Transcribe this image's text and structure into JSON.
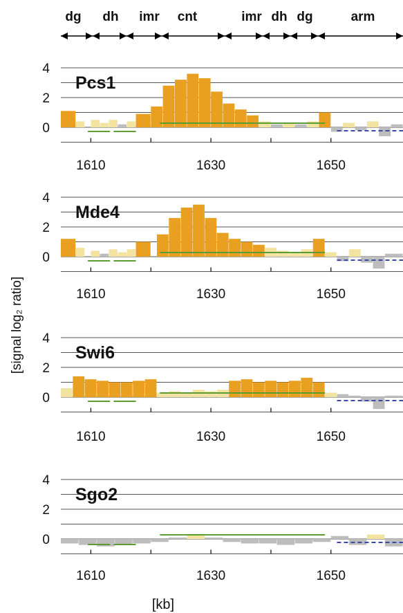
{
  "chart_data": {
    "type": "bar",
    "ylabel": "[signal log₂ ratio]",
    "xlabel": "[kb]",
    "regions": [
      "dg",
      "dh",
      "imr",
      "cnt",
      "imr",
      "dh",
      "dg",
      "arm"
    ],
    "x_ticks": [
      "1610",
      "1630",
      "1650"
    ],
    "y_ticks": [
      "0",
      "2",
      "4"
    ],
    "xlim": [
      1605,
      1662
    ],
    "ylim": [
      -1,
      4.5
    ],
    "panels": [
      {
        "name": "Pcs1",
        "segments": [
          {
            "x": [
              1605,
              1607.5
            ],
            "value": 1.1
          },
          {
            "x": [
              1607.5,
              1609
            ],
            "value": 0.4
          },
          {
            "x": [
              1610,
              1611.5
            ],
            "value": 0.5
          },
          {
            "x": [
              1611.5,
              1613
            ],
            "value": 0.3
          },
          {
            "x": [
              1613,
              1614.5
            ],
            "value": 0.5
          },
          {
            "x": [
              1614.5,
              1616
            ],
            "value": 0.2
          },
          {
            "x": [
              1616,
              1617.5
            ],
            "value": 0.4
          },
          {
            "x": [
              1617.5,
              1620
            ],
            "value": 0.9
          },
          {
            "x": [
              1620,
              1622
            ],
            "value": 1.4
          },
          {
            "x": [
              1622,
              1624
            ],
            "value": 2.8
          },
          {
            "x": [
              1624,
              1626
            ],
            "value": 3.2
          },
          {
            "x": [
              1626,
              1628
            ],
            "value": 3.6
          },
          {
            "x": [
              1628,
              1630
            ],
            "value": 3.3
          },
          {
            "x": [
              1630,
              1632
            ],
            "value": 2.4
          },
          {
            "x": [
              1632,
              1634
            ],
            "value": 1.6
          },
          {
            "x": [
              1634,
              1636
            ],
            "value": 1.2
          },
          {
            "x": [
              1636,
              1638
            ],
            "value": 0.8
          },
          {
            "x": [
              1638,
              1640
            ],
            "value": 0.4
          },
          {
            "x": [
              1640,
              1642
            ],
            "value": 0.2
          },
          {
            "x": [
              1642,
              1644
            ],
            "value": 0.3
          },
          {
            "x": [
              1644,
              1646
            ],
            "value": 0.2
          },
          {
            "x": [
              1646,
              1648
            ],
            "value": 0.4
          },
          {
            "x": [
              1648,
              1650
            ],
            "value": 1.0
          },
          {
            "x": [
              1650,
              1652
            ],
            "value": -0.3
          },
          {
            "x": [
              1652,
              1654
            ],
            "value": 0.3
          },
          {
            "x": [
              1654,
              1656
            ],
            "value": -0.2
          },
          {
            "x": [
              1656,
              1658
            ],
            "value": 0.4
          },
          {
            "x": [
              1658,
              1660
            ],
            "value": -0.6
          },
          {
            "x": [
              1660,
              1662
            ],
            "value": 0.2
          }
        ]
      },
      {
        "name": "Mde4",
        "segments": [
          {
            "x": [
              1605,
              1607.5
            ],
            "value": 1.2
          },
          {
            "x": [
              1607.5,
              1609
            ],
            "value": 0.6
          },
          {
            "x": [
              1610,
              1611.5
            ],
            "value": 0.4
          },
          {
            "x": [
              1611.5,
              1613
            ],
            "value": 0.2
          },
          {
            "x": [
              1613,
              1614.5
            ],
            "value": 0.5
          },
          {
            "x": [
              1614.5,
              1616
            ],
            "value": 0.3
          },
          {
            "x": [
              1616,
              1617.5
            ],
            "value": 0.5
          },
          {
            "x": [
              1617.5,
              1620
            ],
            "value": 1.0
          },
          {
            "x": [
              1621,
              1623
            ],
            "value": 1.5
          },
          {
            "x": [
              1623,
              1625
            ],
            "value": 2.6
          },
          {
            "x": [
              1625,
              1627
            ],
            "value": 3.3
          },
          {
            "x": [
              1627,
              1629
            ],
            "value": 3.5
          },
          {
            "x": [
              1629,
              1631
            ],
            "value": 2.6
          },
          {
            "x": [
              1631,
              1633
            ],
            "value": 1.6
          },
          {
            "x": [
              1633,
              1635
            ],
            "value": 1.2
          },
          {
            "x": [
              1635,
              1637
            ],
            "value": 1.0
          },
          {
            "x": [
              1637,
              1639
            ],
            "value": 0.8
          },
          {
            "x": [
              1639,
              1641
            ],
            "value": 0.6
          },
          {
            "x": [
              1641,
              1643
            ],
            "value": 0.4
          },
          {
            "x": [
              1643,
              1645
            ],
            "value": 0.3
          },
          {
            "x": [
              1645,
              1647
            ],
            "value": 0.5
          },
          {
            "x": [
              1647,
              1649
            ],
            "value": 1.2
          },
          {
            "x": [
              1649,
              1651
            ],
            "value": 0.3
          },
          {
            "x": [
              1651,
              1653
            ],
            "value": -0.3
          },
          {
            "x": [
              1653,
              1655
            ],
            "value": 0.5
          },
          {
            "x": [
              1655,
              1657
            ],
            "value": -0.4
          },
          {
            "x": [
              1657,
              1659
            ],
            "value": -0.8
          },
          {
            "x": [
              1659,
              1662
            ],
            "value": 0.2
          }
        ]
      },
      {
        "name": "Swi6",
        "segments": [
          {
            "x": [
              1605,
              1607
            ],
            "value": 0.6
          },
          {
            "x": [
              1607,
              1609
            ],
            "value": 1.4
          },
          {
            "x": [
              1609,
              1611
            ],
            "value": 1.2
          },
          {
            "x": [
              1611,
              1613
            ],
            "value": 1.1
          },
          {
            "x": [
              1613,
              1615
            ],
            "value": 1.0
          },
          {
            "x": [
              1615,
              1617
            ],
            "value": 1.0
          },
          {
            "x": [
              1617,
              1619
            ],
            "value": 1.1
          },
          {
            "x": [
              1619,
              1621
            ],
            "value": 1.2
          },
          {
            "x": [
              1621,
              1623
            ],
            "value": 0.3
          },
          {
            "x": [
              1623,
              1625
            ],
            "value": 0.4
          },
          {
            "x": [
              1625,
              1627
            ],
            "value": 0.3
          },
          {
            "x": [
              1627,
              1629
            ],
            "value": 0.5
          },
          {
            "x": [
              1629,
              1631
            ],
            "value": 0.4
          },
          {
            "x": [
              1631,
              1633
            ],
            "value": 0.5
          },
          {
            "x": [
              1633,
              1635
            ],
            "value": 1.1
          },
          {
            "x": [
              1635,
              1637
            ],
            "value": 1.2
          },
          {
            "x": [
              1637,
              1639
            ],
            "value": 1.0
          },
          {
            "x": [
              1639,
              1641
            ],
            "value": 1.1
          },
          {
            "x": [
              1641,
              1643
            ],
            "value": 1.0
          },
          {
            "x": [
              1643,
              1645
            ],
            "value": 1.1
          },
          {
            "x": [
              1645,
              1647
            ],
            "value": 1.3
          },
          {
            "x": [
              1647,
              1649
            ],
            "value": 1.0
          },
          {
            "x": [
              1649,
              1651
            ],
            "value": 0.3
          },
          {
            "x": [
              1651,
              1653
            ],
            "value": 0.2
          },
          {
            "x": [
              1653,
              1655
            ],
            "value": 0.1
          },
          {
            "x": [
              1655,
              1657
            ],
            "value": -0.3
          },
          {
            "x": [
              1657,
              1659
            ],
            "value": -0.8
          },
          {
            "x": [
              1659,
              1662
            ],
            "value": 0.1
          }
        ]
      },
      {
        "name": "Sgo2",
        "segments": [
          {
            "x": [
              1605,
              1608
            ],
            "value": -0.3
          },
          {
            "x": [
              1608,
              1611
            ],
            "value": -0.4
          },
          {
            "x": [
              1611,
              1614
            ],
            "value": -0.5
          },
          {
            "x": [
              1614,
              1617
            ],
            "value": -0.4
          },
          {
            "x": [
              1617,
              1620
            ],
            "value": -0.3
          },
          {
            "x": [
              1620,
              1623
            ],
            "value": -0.2
          },
          {
            "x": [
              1623,
              1626
            ],
            "value": 0.1
          },
          {
            "x": [
              1626,
              1629
            ],
            "value": 0.3
          },
          {
            "x": [
              1629,
              1632
            ],
            "value": 0.1
          },
          {
            "x": [
              1632,
              1635
            ],
            "value": -0.2
          },
          {
            "x": [
              1635,
              1638
            ],
            "value": -0.3
          },
          {
            "x": [
              1638,
              1641
            ],
            "value": -0.3
          },
          {
            "x": [
              1641,
              1644
            ],
            "value": -0.4
          },
          {
            "x": [
              1644,
              1647
            ],
            "value": -0.3
          },
          {
            "x": [
              1647,
              1650
            ],
            "value": -0.2
          },
          {
            "x": [
              1650,
              1653
            ],
            "value": 0.2
          },
          {
            "x": [
              1653,
              1656
            ],
            "value": -0.4
          },
          {
            "x": [
              1656,
              1659
            ],
            "value": 0.3
          },
          {
            "x": [
              1659,
              1662
            ],
            "value": -0.5
          }
        ]
      }
    ]
  },
  "colors": {
    "enriched": "#e9a021",
    "weak": "#f2e3a0",
    "unenriched": "#bdbdbd",
    "annotation_green": "#5a9e32",
    "annotation_blue": "#3b4aa8",
    "grid": "#555555",
    "text": "#111111"
  }
}
